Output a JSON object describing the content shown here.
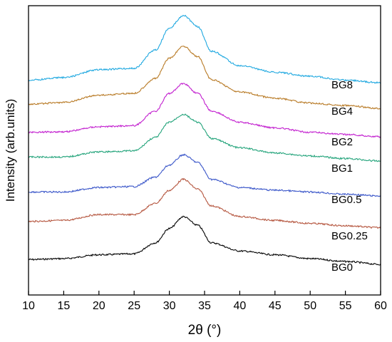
{
  "chart_data": {
    "type": "line",
    "title": "",
    "xlabel": "2θ (°)",
    "ylabel": "Intensity (arb.units)",
    "xlim": [
      10,
      60
    ],
    "xticks": [
      10,
      15,
      20,
      25,
      30,
      35,
      40,
      45,
      50,
      55,
      60
    ],
    "y_ticks_shown": false,
    "grid": false,
    "legend": "none",
    "series": [
      {
        "name": "BG0",
        "color": "#000000",
        "offset": 0,
        "points": [
          [
            10,
            0.1
          ],
          [
            15,
            0.12
          ],
          [
            20,
            0.2
          ],
          [
            25,
            0.22
          ],
          [
            28,
            0.45
          ],
          [
            30,
            0.75
          ],
          [
            32,
            1.0
          ],
          [
            34,
            0.82
          ],
          [
            36,
            0.45
          ],
          [
            40,
            0.28
          ],
          [
            45,
            0.2
          ],
          [
            50,
            0.12
          ],
          [
            55,
            0.06
          ],
          [
            60,
            0.0
          ]
        ]
      },
      {
        "name": "BG0.25",
        "color": "#b5563f",
        "offset": 1,
        "points": [
          [
            10,
            0.18
          ],
          [
            15,
            0.2
          ],
          [
            20,
            0.32
          ],
          [
            25,
            0.32
          ],
          [
            28,
            0.55
          ],
          [
            30,
            0.82
          ],
          [
            32,
            1.05
          ],
          [
            34,
            0.85
          ],
          [
            36,
            0.5
          ],
          [
            40,
            0.28
          ],
          [
            45,
            0.2
          ],
          [
            50,
            0.14
          ],
          [
            55,
            0.09
          ],
          [
            60,
            0.05
          ]
        ]
      },
      {
        "name": "BG0.5",
        "color": "#3a56c9",
        "offset": 2,
        "points": [
          [
            10,
            0.12
          ],
          [
            15,
            0.12
          ],
          [
            20,
            0.22
          ],
          [
            25,
            0.24
          ],
          [
            28,
            0.45
          ],
          [
            30,
            0.72
          ],
          [
            32,
            0.95
          ],
          [
            34,
            0.78
          ],
          [
            36,
            0.4
          ],
          [
            40,
            0.22
          ],
          [
            45,
            0.16
          ],
          [
            50,
            0.12
          ],
          [
            55,
            0.07
          ],
          [
            60,
            0.03
          ]
        ]
      },
      {
        "name": "BG1",
        "color": "#22a37a",
        "offset": 3,
        "points": [
          [
            10,
            0.12
          ],
          [
            15,
            0.12
          ],
          [
            20,
            0.22
          ],
          [
            25,
            0.24
          ],
          [
            28,
            0.5
          ],
          [
            30,
            0.8
          ],
          [
            32,
            0.95
          ],
          [
            34,
            0.8
          ],
          [
            36,
            0.48
          ],
          [
            40,
            0.3
          ],
          [
            45,
            0.2
          ],
          [
            50,
            0.14
          ],
          [
            55,
            0.09
          ],
          [
            60,
            0.04
          ]
        ]
      },
      {
        "name": "BG2",
        "color": "#c21fcf",
        "offset": 4,
        "points": [
          [
            10,
            0.12
          ],
          [
            15,
            0.13
          ],
          [
            20,
            0.22
          ],
          [
            25,
            0.24
          ],
          [
            28,
            0.5
          ],
          [
            30,
            0.82
          ],
          [
            32,
            1.0
          ],
          [
            34,
            0.82
          ],
          [
            36,
            0.5
          ],
          [
            40,
            0.3
          ],
          [
            45,
            0.2
          ],
          [
            50,
            0.12
          ],
          [
            55,
            0.08
          ],
          [
            60,
            0.04
          ]
        ]
      },
      {
        "name": "BG4",
        "color": "#b87a25",
        "offset": 5,
        "points": [
          [
            10,
            0.1
          ],
          [
            15,
            0.13
          ],
          [
            20,
            0.25
          ],
          [
            25,
            0.28
          ],
          [
            28,
            0.52
          ],
          [
            30,
            0.85
          ],
          [
            32,
            1.05
          ],
          [
            34,
            0.88
          ],
          [
            36,
            0.5
          ],
          [
            40,
            0.3
          ],
          [
            45,
            0.2
          ],
          [
            50,
            0.12
          ],
          [
            55,
            0.08
          ],
          [
            60,
            0.03
          ]
        ]
      },
      {
        "name": "BG8",
        "color": "#1fa8e0",
        "offset": 6,
        "points": [
          [
            10,
            0.06
          ],
          [
            15,
            0.1
          ],
          [
            20,
            0.22
          ],
          [
            25,
            0.24
          ],
          [
            28,
            0.52
          ],
          [
            30,
            0.85
          ],
          [
            32,
            1.05
          ],
          [
            34,
            0.88
          ],
          [
            36,
            0.5
          ],
          [
            40,
            0.28
          ],
          [
            45,
            0.18
          ],
          [
            50,
            0.12
          ],
          [
            55,
            0.06
          ],
          [
            60,
            0.02
          ]
        ]
      }
    ]
  }
}
